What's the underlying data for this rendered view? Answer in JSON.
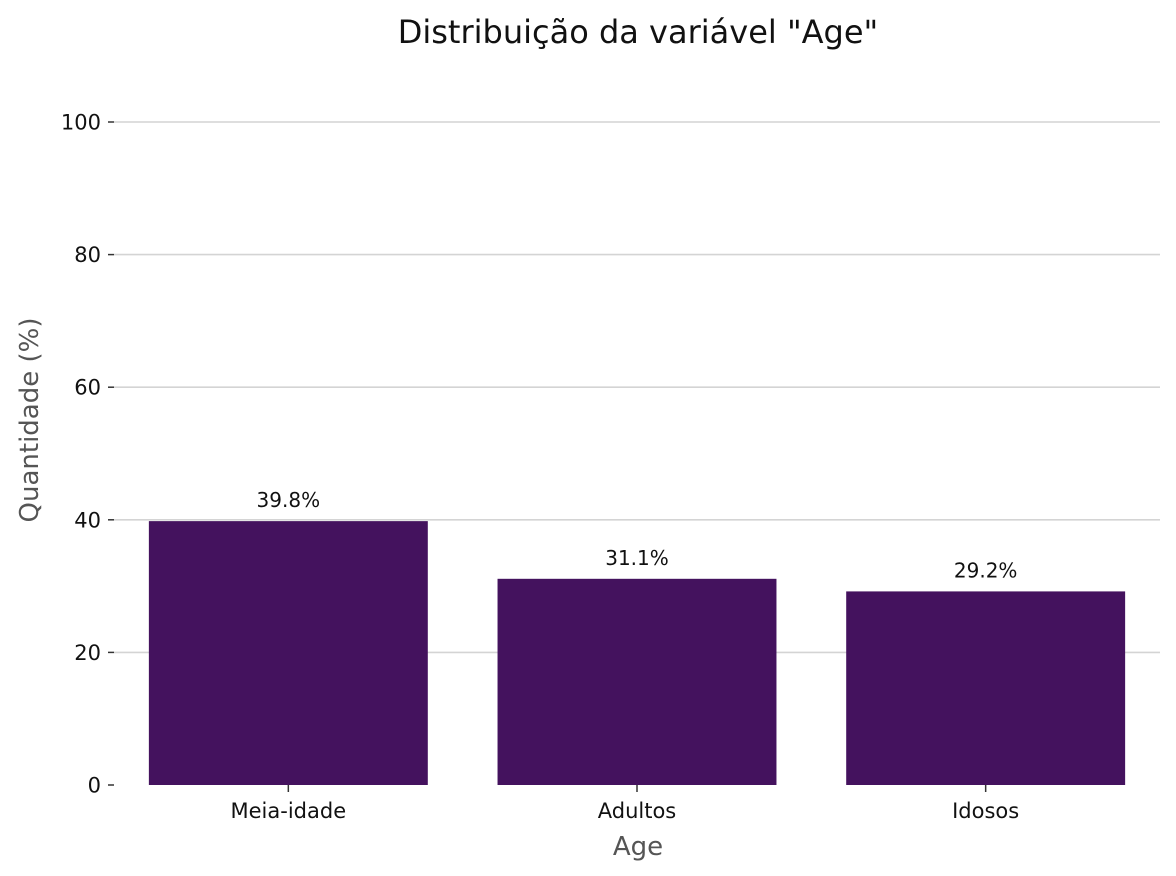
{
  "chart_data": {
    "type": "bar",
    "title": "Distribuição da variável \"Age\"",
    "xlabel": "Age",
    "ylabel": "Quantidade (%)",
    "categories": [
      "Meia-idade",
      "Adultos",
      "Idosos"
    ],
    "values": [
      39.8,
      31.1,
      29.2
    ],
    "value_labels": [
      "39.8%",
      "31.1%",
      "29.2%"
    ],
    "ylim": [
      0,
      100
    ],
    "yticks": [
      0,
      20,
      40,
      60,
      80,
      100
    ],
    "ytick_labels": [
      "0",
      "20",
      "40",
      "60",
      "80",
      "100"
    ],
    "grid": "horizontal",
    "bar_color": "#44125e"
  }
}
